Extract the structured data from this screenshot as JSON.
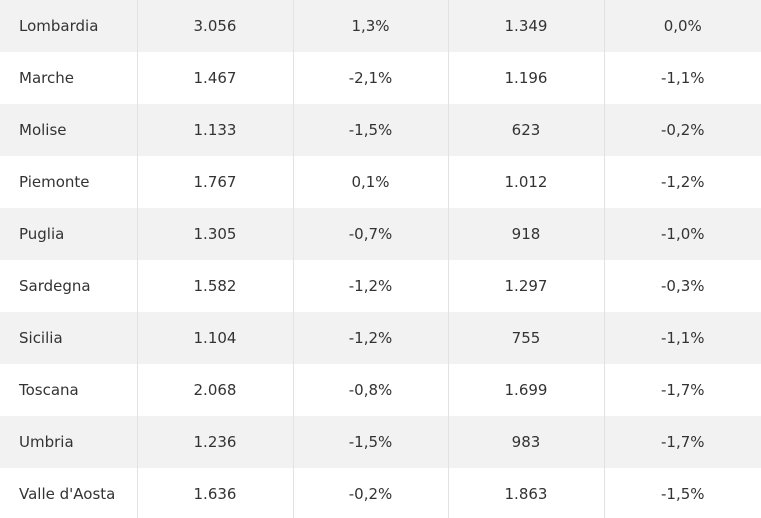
{
  "table": {
    "rows": [
      [
        "Lombardia",
        "3.056",
        "1,3%",
        "1.349",
        "0,0%"
      ],
      [
        "Marche",
        "1.467",
        "-2,1%",
        "1.196",
        "-1,1%"
      ],
      [
        "Molise",
        "1.133",
        "-1,5%",
        "623",
        "-0,2%"
      ],
      [
        "Piemonte",
        "1.767",
        "0,1%",
        "1.012",
        "-1,2%"
      ],
      [
        "Puglia",
        "1.305",
        "-0,7%",
        "918",
        "-1,0%"
      ],
      [
        "Sardegna",
        "1.582",
        "-1,2%",
        "1.297",
        "-0,3%"
      ],
      [
        "Sicilia",
        "1.104",
        "-1,2%",
        "755",
        "-1,1%"
      ],
      [
        "Toscana",
        "2.068",
        "-0,8%",
        "1.699",
        "-1,7%"
      ],
      [
        "Umbria",
        "1.236",
        "-1,5%",
        "983",
        "-1,7%"
      ],
      [
        "Valle d'Aosta",
        "1.636",
        "-0,2%",
        "1.863",
        "-1,5%"
      ]
    ]
  }
}
